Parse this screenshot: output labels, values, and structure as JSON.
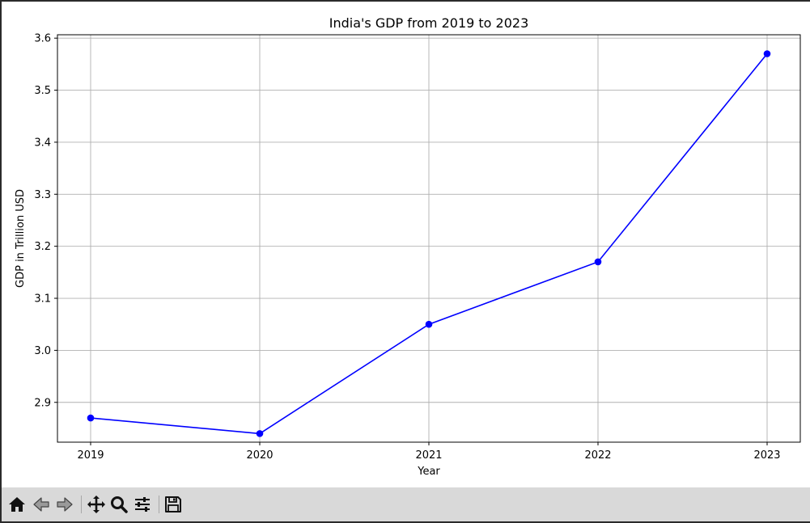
{
  "window": {
    "toolbar": {
      "buttons": [
        {
          "name": "home",
          "icon": "home-icon"
        },
        {
          "name": "back",
          "icon": "back-arrow-icon"
        },
        {
          "name": "forward",
          "icon": "forward-arrow-icon"
        },
        {
          "name": "pan",
          "icon": "move-icon"
        },
        {
          "name": "zoom",
          "icon": "zoom-icon"
        },
        {
          "name": "configure-subplots",
          "icon": "sliders-icon"
        },
        {
          "name": "save",
          "icon": "save-icon"
        }
      ]
    }
  },
  "chart_data": {
    "type": "line",
    "title": "India's GDP from 2019 to 2023",
    "xlabel": "Year",
    "ylabel": "GDP in Trillion USD",
    "x": [
      "2019",
      "2020",
      "2021",
      "2022",
      "2023"
    ],
    "series": [
      {
        "values": [
          2.87,
          2.84,
          3.05,
          3.17,
          3.57
        ],
        "color": "#0000ff",
        "marker": "circle"
      }
    ],
    "yticks": [
      "2.9",
      "3.0",
      "3.1",
      "3.2",
      "3.3",
      "3.4",
      "3.5",
      "3.6"
    ],
    "ylim": [
      2.8235,
      3.6065
    ],
    "grid": true,
    "colors": {
      "line": "#0000ff",
      "grid": "#b0b0b0",
      "axes": "#000000"
    }
  }
}
